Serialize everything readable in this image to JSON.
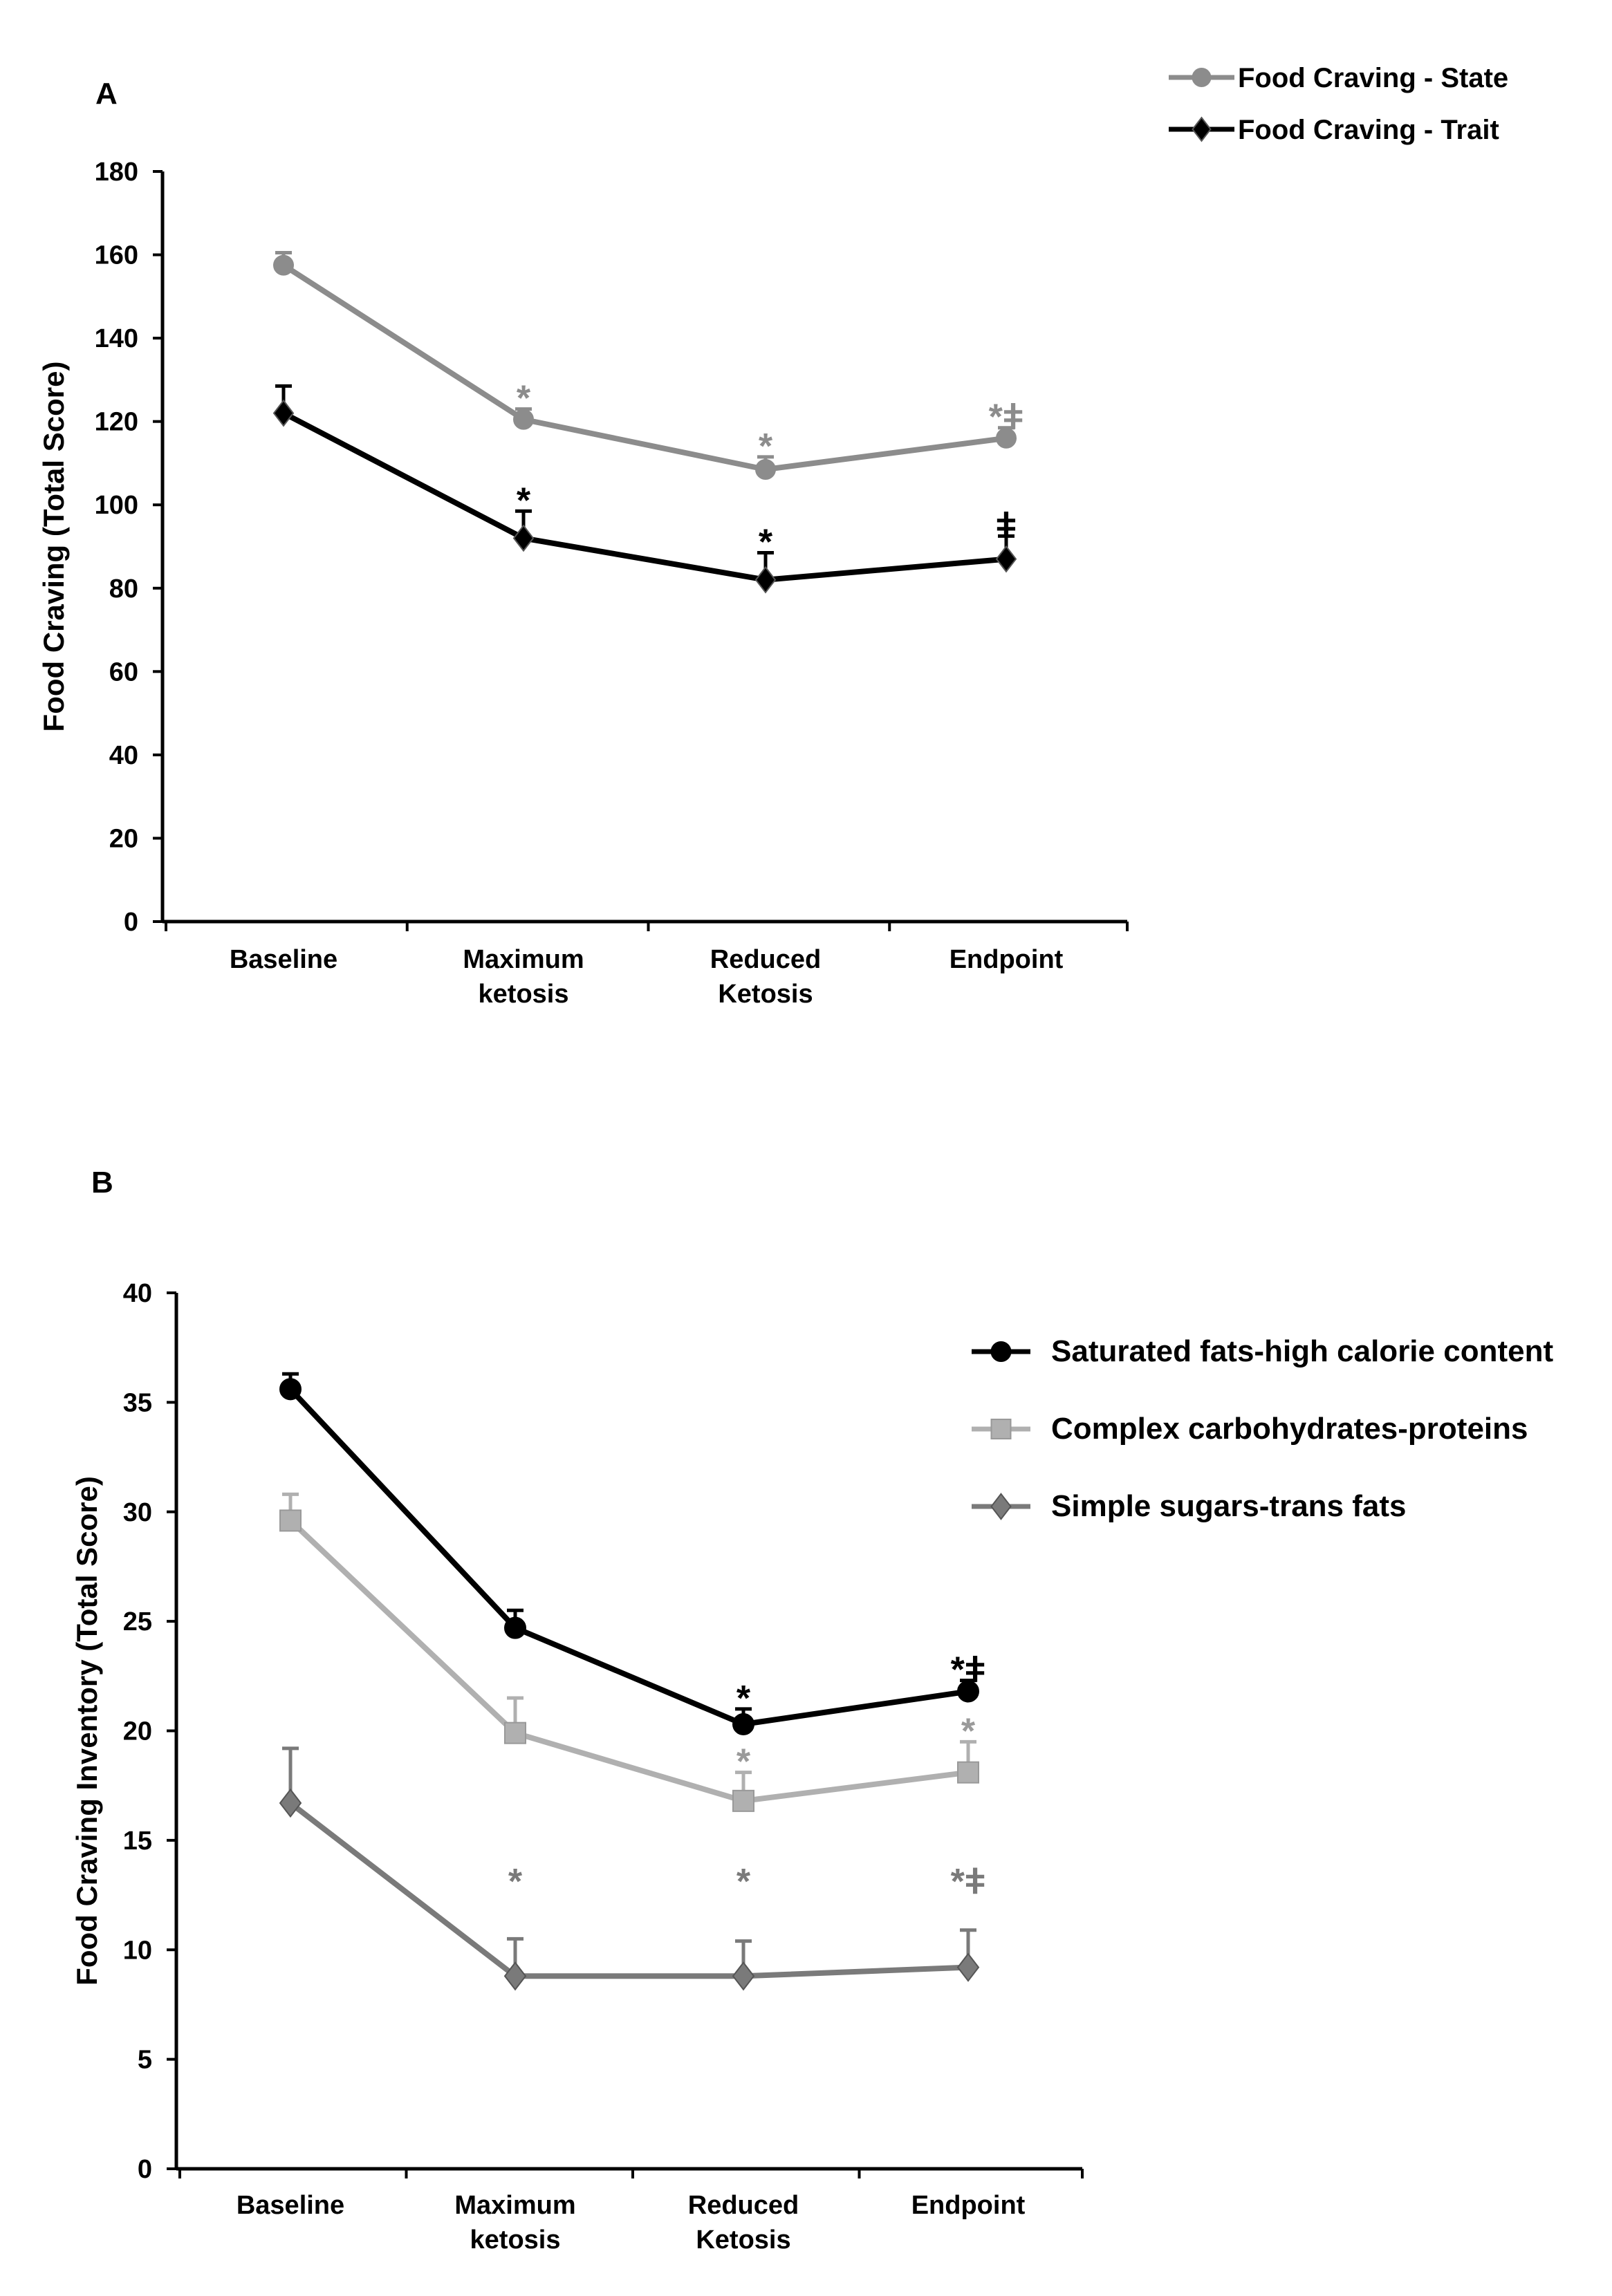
{
  "chart_data": [
    {
      "panel": "A",
      "type": "line",
      "ylabel": "Food Craving (Total Score)",
      "xlabel": "",
      "ylim": [
        0,
        180
      ],
      "yticks": [
        0,
        20,
        40,
        60,
        80,
        100,
        120,
        140,
        160,
        180
      ],
      "categories": [
        [
          "Baseline"
        ],
        [
          "Maximum",
          "ketosis"
        ],
        [
          "Reduced",
          "Ketosis"
        ],
        [
          "Endpoint"
        ]
      ],
      "legend_position": "top-right",
      "series": [
        {
          "name": "Food Craving - State",
          "color": "#8c8c8c",
          "marker": "circle",
          "values": [
            157.5,
            120.5,
            108.5,
            116
          ],
          "error": [
            3,
            2.5,
            3,
            2.5
          ],
          "annotations": [
            "",
            "*",
            "*",
            "*ǂ"
          ]
        },
        {
          "name": "Food Craving - Trait",
          "color": "#000000",
          "marker": "diamond",
          "values": [
            122,
            92,
            82,
            87
          ],
          "error": [
            6.5,
            6.5,
            6.5,
            5.5
          ],
          "annotations": [
            "",
            "*",
            "*",
            "ǂ"
          ]
        }
      ]
    },
    {
      "panel": "B",
      "type": "line",
      "ylabel": "Food Craving Inventory (Total Score)",
      "xlabel": "",
      "ylim": [
        0,
        40
      ],
      "yticks": [
        0,
        5,
        10,
        15,
        20,
        25,
        30,
        35,
        40
      ],
      "categories": [
        [
          "Baseline"
        ],
        [
          "Maximum",
          "ketosis"
        ],
        [
          "Reduced",
          "Ketosis"
        ],
        [
          "Endpoint"
        ]
      ],
      "legend_position": "right",
      "series": [
        {
          "name": "Saturated fats-high calorie content",
          "color": "#000000",
          "marker": "circle",
          "values": [
            35.6,
            24.7,
            20.3,
            21.8
          ],
          "error": [
            0.7,
            0.8,
            0.7,
            0.5
          ],
          "annotations": [
            "",
            "",
            "*",
            "*ǂ"
          ]
        },
        {
          "name": "Complex carbohydrates-proteins",
          "color": "#b0b0b0",
          "marker": "square",
          "values": [
            29.6,
            19.9,
            16.8,
            18.1
          ],
          "error": [
            1.2,
            1.6,
            1.3,
            1.4
          ],
          "annotations": [
            "",
            "",
            "*",
            "*"
          ]
        },
        {
          "name": "Simple sugars-trans fats",
          "color": "#7a7a7a",
          "marker": "diamond",
          "values": [
            16.7,
            8.8,
            8.8,
            9.2
          ],
          "error": [
            2.5,
            1.7,
            1.6,
            1.7
          ],
          "annotations": [
            "",
            "*",
            "*",
            "*ǂ"
          ]
        }
      ]
    }
  ]
}
